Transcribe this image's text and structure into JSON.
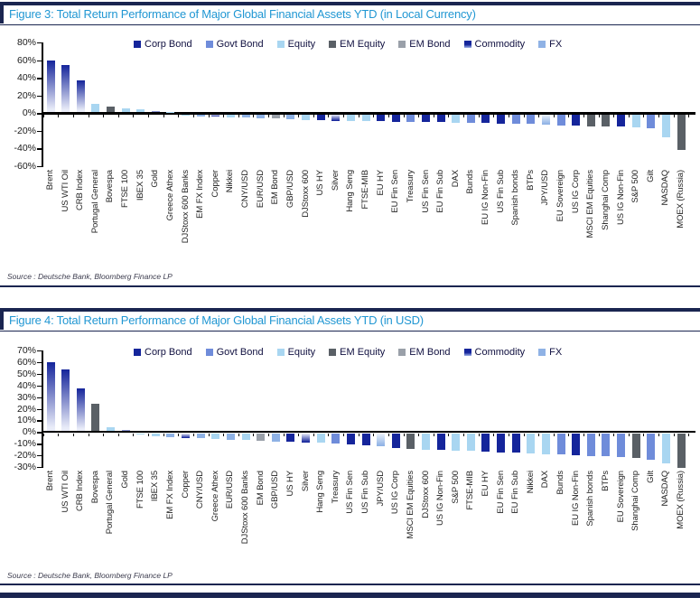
{
  "colors": {
    "corp_bond": "#15259B",
    "govt_bond": "#6F8CDA",
    "equity": "#A9D6F1",
    "em_equity": "#5A6066",
    "em_bond": "#9AA0A9",
    "commodity": "#15259B",
    "fx": "#8FB2E5",
    "commodity_fade": "#E9ECF8",
    "fx_fade": "#EAF1FA",
    "title": "#2197D3",
    "border": "#1A2550"
  },
  "legend": {
    "items": [
      {
        "key": "corp_bond",
        "label": "Corp Bond"
      },
      {
        "key": "govt_bond",
        "label": "Govt Bond"
      },
      {
        "key": "equity",
        "label": "Equity"
      },
      {
        "key": "em_equity",
        "label": "EM Equity"
      },
      {
        "key": "em_bond",
        "label": "EM Bond"
      },
      {
        "key": "commodity",
        "label": "Commodity"
      },
      {
        "key": "fx",
        "label": "FX"
      }
    ]
  },
  "chart_data": [
    {
      "type": "bar",
      "title": "Figure 3: Total Return Performance of Major Global Financial Assets YTD (in Local Currency)",
      "source": "Source : Deutsche Bank, Bloomberg Finance LP",
      "ylim": [
        -60,
        80
      ],
      "ytick_step": 20,
      "ytick_labels": [
        "80%",
        "60%",
        "40%",
        "20%",
        "0%",
        "-20%",
        "-40%",
        "-60%"
      ],
      "legend_position": "top",
      "grid": false,
      "bars": [
        {
          "label": "Brent",
          "value": 59,
          "cat": "commodity",
          "grad": true
        },
        {
          "label": "US WTI Oil",
          "value": 53,
          "cat": "commodity",
          "grad": true
        },
        {
          "label": "CRB Index",
          "value": 36.5,
          "cat": "commodity",
          "grad": true
        },
        {
          "label": "Portugal General",
          "value": 9.5,
          "cat": "equity"
        },
        {
          "label": "Bovespa",
          "value": 6,
          "cat": "em_equity"
        },
        {
          "label": "FTSE 100",
          "value": 4,
          "cat": "equity"
        },
        {
          "label": "IBEX 35",
          "value": 3,
          "cat": "equity"
        },
        {
          "label": "Gold",
          "value": 1,
          "cat": "commodity",
          "grad": true
        },
        {
          "label": "Greece Athex",
          "value": 0.5,
          "cat": "equity"
        },
        {
          "label": "DJStoxx 600 Banks",
          "value": -1,
          "cat": "equity"
        },
        {
          "label": "EM FX Index",
          "value": -2.5,
          "cat": "fx"
        },
        {
          "label": "Copper",
          "value": -3,
          "cat": "commodity",
          "grad": true
        },
        {
          "label": "Nikkei",
          "value": -3.5,
          "cat": "equity"
        },
        {
          "label": "CNY/USD",
          "value": -4,
          "cat": "fx"
        },
        {
          "label": "EUR/USD",
          "value": -4.5,
          "cat": "fx"
        },
        {
          "label": "EM Bond",
          "value": -5,
          "cat": "em_bond"
        },
        {
          "label": "GBP/USD",
          "value": -5.5,
          "cat": "fx"
        },
        {
          "label": "DJStoxx 600",
          "value": -6.5,
          "cat": "equity"
        },
        {
          "label": "US HY",
          "value": -7,
          "cat": "corp_bond"
        },
        {
          "label": "Silver",
          "value": -7.5,
          "cat": "commodity",
          "grad": true
        },
        {
          "label": "Hang Seng",
          "value": -7.5,
          "cat": "equity"
        },
        {
          "label": "FTSE-MIB",
          "value": -8,
          "cat": "equity"
        },
        {
          "label": "EU HY",
          "value": -8,
          "cat": "corp_bond"
        },
        {
          "label": "EU Fin Sen",
          "value": -8.5,
          "cat": "corp_bond"
        },
        {
          "label": "Treasury",
          "value": -8.5,
          "cat": "govt_bond"
        },
        {
          "label": "US Fin Sen",
          "value": -9,
          "cat": "corp_bond"
        },
        {
          "label": "EU Fin Sub",
          "value": -9,
          "cat": "corp_bond"
        },
        {
          "label": "DAX",
          "value": -9.5,
          "cat": "equity"
        },
        {
          "label": "Bunds",
          "value": -10,
          "cat": "govt_bond"
        },
        {
          "label": "EU IG Non-Fin",
          "value": -10,
          "cat": "corp_bond"
        },
        {
          "label": "US Fin Sub",
          "value": -10.5,
          "cat": "corp_bond"
        },
        {
          "label": "Spanish bonds",
          "value": -10.5,
          "cat": "govt_bond"
        },
        {
          "label": "BTPs",
          "value": -11,
          "cat": "govt_bond"
        },
        {
          "label": "JPY/USD",
          "value": -12,
          "cat": "fx",
          "grad": true
        },
        {
          "label": "EU Sovereign",
          "value": -12.5,
          "cat": "govt_bond"
        },
        {
          "label": "US IG Corp",
          "value": -13,
          "cat": "corp_bond"
        },
        {
          "label": "MSCI EM Equities",
          "value": -13.5,
          "cat": "em_equity"
        },
        {
          "label": "Shanghai Comp",
          "value": -13.5,
          "cat": "em_equity"
        },
        {
          "label": "US IG Non-Fin",
          "value": -14,
          "cat": "corp_bond"
        },
        {
          "label": "S&P 500",
          "value": -14.5,
          "cat": "equity"
        },
        {
          "label": "Gilt",
          "value": -15.5,
          "cat": "govt_bond"
        },
        {
          "label": "NASDAQ",
          "value": -26,
          "cat": "equity"
        },
        {
          "label": "MOEX (Russia)",
          "value": -40,
          "cat": "em_equity"
        }
      ]
    },
    {
      "type": "bar",
      "title": "Figure 4: Total Return Performance of Major Global Financial Assets YTD (in USD)",
      "source": "Source : Deutsche Bank, Bloomberg Finance LP",
      "ylim": [
        -30,
        70
      ],
      "ytick_step": 10,
      "ytick_labels": [
        "70%",
        "60%",
        "50%",
        "40%",
        "30%",
        "20%",
        "10%",
        "0%",
        "-10%",
        "-20%",
        "-30%"
      ],
      "legend_position": "top",
      "grid": false,
      "bars": [
        {
          "label": "Brent",
          "value": 59,
          "cat": "commodity",
          "grad": true
        },
        {
          "label": "US WTI Oil",
          "value": 53,
          "cat": "commodity",
          "grad": true
        },
        {
          "label": "CRB Index",
          "value": 36.5,
          "cat": "commodity",
          "grad": true
        },
        {
          "label": "Bovespa",
          "value": 23.5,
          "cat": "em_equity"
        },
        {
          "label": "Portugal General",
          "value": 3,
          "cat": "equity"
        },
        {
          "label": "Gold",
          "value": 1,
          "cat": "commodity",
          "grad": true
        },
        {
          "label": "FTSE 100",
          "value": -1.5,
          "cat": "equity"
        },
        {
          "label": "IBEX 35",
          "value": -2.5,
          "cat": "equity"
        },
        {
          "label": "EM FX Index",
          "value": -3.5,
          "cat": "fx"
        },
        {
          "label": "Copper",
          "value": -4,
          "cat": "commodity",
          "grad": true
        },
        {
          "label": "CNY/USD",
          "value": -4.5,
          "cat": "fx"
        },
        {
          "label": "Greece Athex",
          "value": -5,
          "cat": "equity"
        },
        {
          "label": "EUR/USD",
          "value": -5.5,
          "cat": "fx"
        },
        {
          "label": "DJStoxx 600 Banks",
          "value": -6,
          "cat": "equity"
        },
        {
          "label": "EM Bond",
          "value": -6.5,
          "cat": "em_bond"
        },
        {
          "label": "GBP/USD",
          "value": -7,
          "cat": "fx"
        },
        {
          "label": "US HY",
          "value": -7.5,
          "cat": "corp_bond"
        },
        {
          "label": "Silver",
          "value": -8,
          "cat": "commodity",
          "grad": true
        },
        {
          "label": "Hang Seng",
          "value": -8.5,
          "cat": "equity"
        },
        {
          "label": "Treasury",
          "value": -9,
          "cat": "govt_bond"
        },
        {
          "label": "US Fin Sen",
          "value": -9.5,
          "cat": "corp_bond"
        },
        {
          "label": "US Fin Sub",
          "value": -10.5,
          "cat": "corp_bond"
        },
        {
          "label": "JPY/USD",
          "value": -11.5,
          "cat": "fx",
          "grad": true
        },
        {
          "label": "US IG Corp",
          "value": -12.5,
          "cat": "corp_bond"
        },
        {
          "label": "MSCI EM Equities",
          "value": -13.5,
          "cat": "em_equity"
        },
        {
          "label": "DJStoxx 600",
          "value": -14,
          "cat": "equity"
        },
        {
          "label": "US IG Non-Fin",
          "value": -14.5,
          "cat": "corp_bond"
        },
        {
          "label": "S&P 500",
          "value": -15,
          "cat": "equity"
        },
        {
          "label": "FTSE-MIB",
          "value": -15.5,
          "cat": "equity"
        },
        {
          "label": "EU HY",
          "value": -16,
          "cat": "corp_bond"
        },
        {
          "label": "EU Fin Sen",
          "value": -16.5,
          "cat": "corp_bond"
        },
        {
          "label": "EU Fin Sub",
          "value": -17,
          "cat": "corp_bond"
        },
        {
          "label": "Nikkei",
          "value": -17.5,
          "cat": "equity"
        },
        {
          "label": "DAX",
          "value": -18,
          "cat": "equity"
        },
        {
          "label": "Bunds",
          "value": -18.5,
          "cat": "govt_bond"
        },
        {
          "label": "EU IG Non-Fin",
          "value": -19,
          "cat": "corp_bond"
        },
        {
          "label": "Spanish bonds",
          "value": -19.5,
          "cat": "govt_bond"
        },
        {
          "label": "BTPs",
          "value": -20,
          "cat": "govt_bond"
        },
        {
          "label": "EU Sovereign",
          "value": -20.5,
          "cat": "govt_bond"
        },
        {
          "label": "Shanghai Comp",
          "value": -21,
          "cat": "em_equity"
        },
        {
          "label": "Gilt",
          "value": -23,
          "cat": "govt_bond"
        },
        {
          "label": "NASDAQ",
          "value": -26,
          "cat": "equity"
        },
        {
          "label": "MOEX (Russia)",
          "value": -30,
          "cat": "em_equity"
        }
      ]
    }
  ]
}
